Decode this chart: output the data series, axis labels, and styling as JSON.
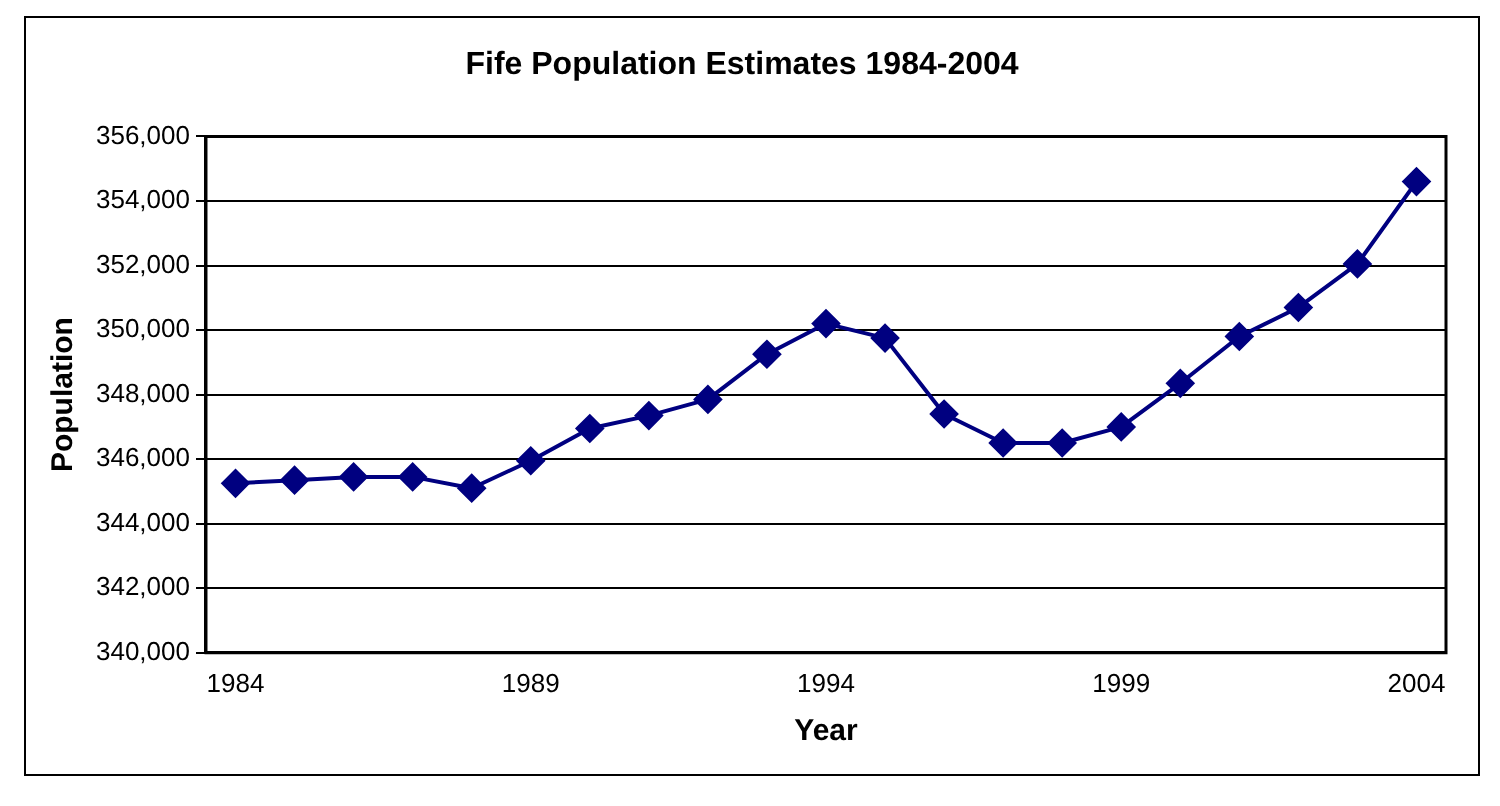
{
  "chart_data": {
    "type": "line",
    "title": "Fife Population Estimates 1984-2004",
    "xlabel": "Year",
    "ylabel": "Population",
    "x": [
      1984,
      1985,
      1986,
      1987,
      1988,
      1989,
      1990,
      1991,
      1992,
      1993,
      1994,
      1995,
      1996,
      1997,
      1998,
      1999,
      2000,
      2001,
      2002,
      2003,
      2004
    ],
    "series": [
      {
        "color": "#000080",
        "values": [
          345250,
          345350,
          345450,
          345450,
          345100,
          345950,
          346950,
          347350,
          347850,
          349250,
          350200,
          349750,
          347400,
          346500,
          346500,
          347000,
          348350,
          349800,
          350700,
          352050,
          354600
        ]
      }
    ],
    "xlim": [
      1983.5,
      2004.5
    ],
    "xticks": [
      {
        "value": 1984,
        "label": "1984"
      },
      {
        "value": 1989,
        "label": "1989"
      },
      {
        "value": 1994,
        "label": "1994"
      },
      {
        "value": 1999,
        "label": "1999"
      },
      {
        "value": 2004,
        "label": "2004"
      }
    ],
    "ylim": [
      340000,
      356000
    ],
    "yticks": [
      {
        "value": 340000,
        "label": "340,000"
      },
      {
        "value": 342000,
        "label": "342,000"
      },
      {
        "value": 344000,
        "label": "344,000"
      },
      {
        "value": 346000,
        "label": "346,000"
      },
      {
        "value": 348000,
        "label": "348,000"
      },
      {
        "value": 350000,
        "label": "350,000"
      },
      {
        "value": 352000,
        "label": "352,000"
      },
      {
        "value": 354000,
        "label": "354,000"
      },
      {
        "value": 356000,
        "label": "356,000"
      }
    ],
    "grid": "y",
    "legend": false,
    "marker": "diamond",
    "line_style": "solid"
  }
}
